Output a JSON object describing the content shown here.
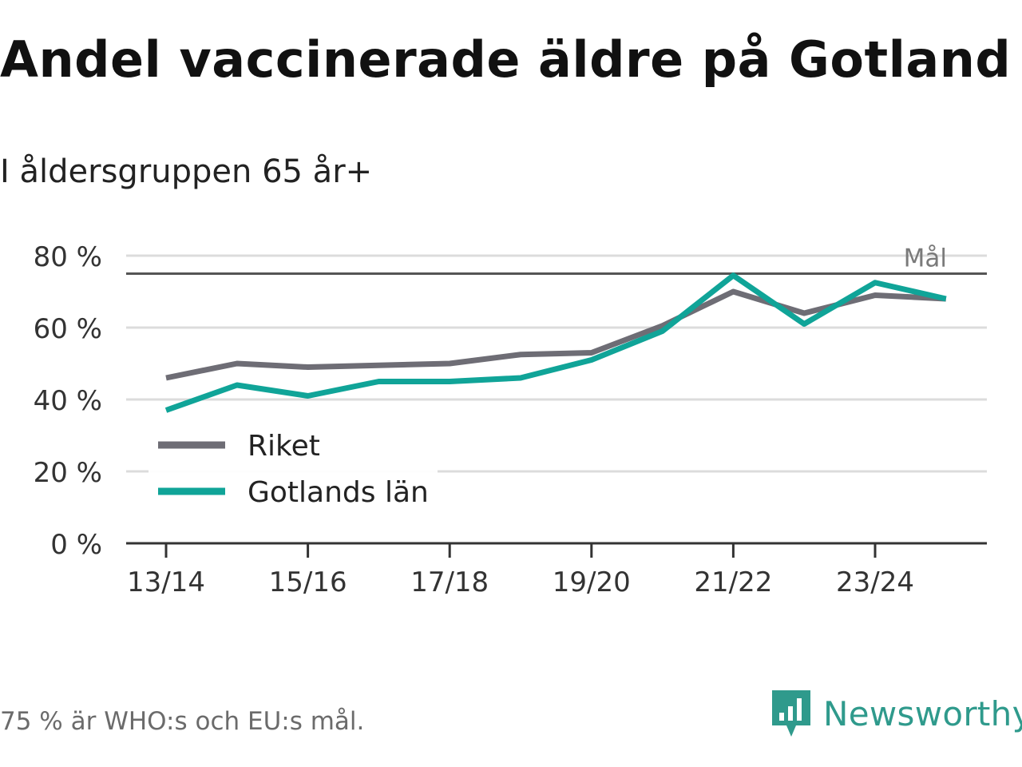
{
  "chart_data": {
    "type": "line",
    "title": "Andel vaccinerade äldre på Gotland",
    "subtitle": "I åldersgruppen 65 år+",
    "x": [
      "13/14",
      "14/15",
      "15/16",
      "16/17",
      "17/18",
      "18/19",
      "19/20",
      "20/21",
      "21/22",
      "22/23",
      "23/24",
      "24/25"
    ],
    "x_tick_labels": [
      "13/14",
      "15/16",
      "17/18",
      "19/20",
      "21/22",
      "23/24"
    ],
    "ylim": [
      0,
      80
    ],
    "y_ticks": [
      0,
      20,
      40,
      60,
      80
    ],
    "y_tick_labels": [
      "0 %",
      "20 %",
      "40 %",
      "60 %",
      "80 %"
    ],
    "xlabel": "",
    "ylabel": "",
    "grid": true,
    "series": [
      {
        "name": "Riket",
        "color": "#6e6d75",
        "values": [
          46,
          50,
          49,
          49.5,
          50,
          52.5,
          53,
          60.5,
          70,
          64,
          69,
          68
        ]
      },
      {
        "name": "Gotlands län",
        "color": "#10a498",
        "values": [
          37,
          44,
          41,
          45,
          45,
          46,
          51,
          59,
          74.5,
          61,
          72.5,
          68
        ]
      }
    ],
    "reference_line": {
      "value": 75,
      "label": "Mål",
      "color": "#555555"
    },
    "legend_position": "bottom-left"
  },
  "footnote": "75 % är WHO:s och EU:s mål.",
  "brand": {
    "name": "Newsworthy",
    "color": "#2f9a8c"
  }
}
